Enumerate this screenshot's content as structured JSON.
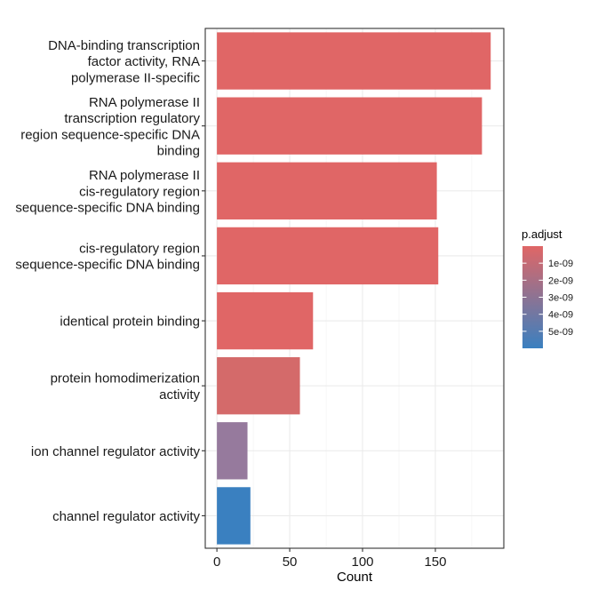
{
  "chart_data": {
    "type": "bar",
    "orientation": "horizontal",
    "xlabel": "Count",
    "ylabel": "",
    "xlim": [
      -8,
      197
    ],
    "xticks": [
      0,
      50,
      100,
      150
    ],
    "grid": true,
    "categories": [
      [
        "DNA-binding transcription",
        "factor activity, RNA",
        "polymerase II-specific"
      ],
      [
        "RNA polymerase II",
        "transcription regulatory",
        "region sequence-specific DNA",
        "binding"
      ],
      [
        "RNA polymerase II",
        "cis-regulatory region",
        "sequence-specific DNA binding"
      ],
      [
        "cis-regulatory region",
        "sequence-specific DNA binding"
      ],
      [
        "identical protein binding"
      ],
      [
        "protein homodimerization",
        "activity"
      ],
      [
        "ion channel regulator activity"
      ],
      [
        "channel regulator activity"
      ]
    ],
    "values": [
      188,
      182,
      151,
      152,
      66,
      57,
      21,
      23
    ],
    "p_adjust": [
      4e-11,
      5e-11,
      1e-10,
      1e-10,
      2e-10,
      6e-10,
      3.3e-09,
      5.8e-09
    ],
    "bar_colors": [
      "#e06666",
      "#e06666",
      "#e06666",
      "#e06666",
      "#e06666",
      "#d46a6a",
      "#967a9d",
      "#3a80c0"
    ],
    "legend": {
      "title": "p.adjust",
      "position": "right",
      "labels": [
        "1e-09",
        "2e-09",
        "3e-09",
        "4e-09",
        "5e-09"
      ],
      "values": [
        1e-09,
        2e-09,
        3e-09,
        4e-09,
        5e-09
      ],
      "min": 0,
      "max": 6e-09,
      "color_low": "#e06666",
      "color_high": "#3a80c0"
    }
  }
}
